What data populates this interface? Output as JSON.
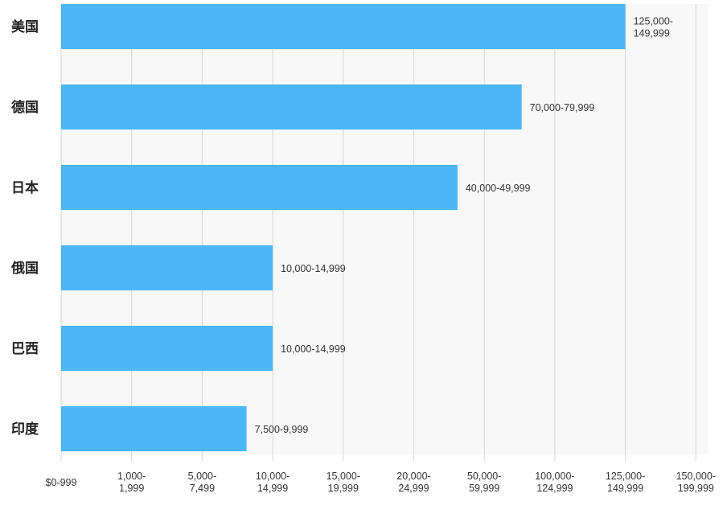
{
  "chart_data": {
    "type": "bar",
    "orientation": "horizontal",
    "title": "",
    "xlabel": "",
    "ylabel": "",
    "x_ticks": [
      "$0-999",
      "1,000-\n1,999",
      "5,000-\n7,499",
      "10,000-\n14,999",
      "15,000-\n19,999",
      "20,000-\n24,999",
      "50,000-\n59,999",
      "100,000-\n124,999",
      "125,000-\n149,999",
      "150,000-\n199,999"
    ],
    "xlim": [
      0,
      9
    ],
    "grid": true,
    "categories": [
      "美国",
      "德国",
      "日本",
      "俄国",
      "巴西",
      "印度"
    ],
    "values": [
      8,
      6.53,
      5.62,
      3,
      3,
      2.63
    ],
    "data_labels": [
      "125,000-\n149,999",
      "70,000-79,999",
      "40,000-49,999",
      "10,000-14,999",
      "10,000-14,999",
      "7,500-9,999"
    ],
    "bar_color": "#4db6f7",
    "plot_bg": "#f8f8f8",
    "grid_color": "#dddddd"
  }
}
